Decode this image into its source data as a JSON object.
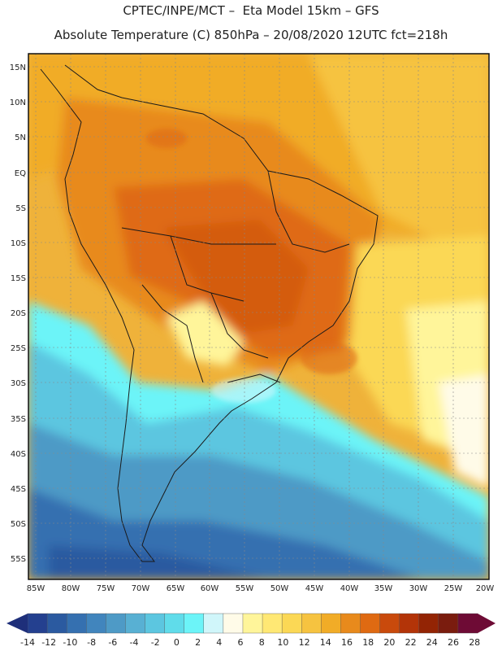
{
  "header": {
    "line1": "CPTEC/INPE/MCT –  Eta Model 15km – GFS",
    "line2": "Absolute Temperature (C) 850hPa – 20/08/2020 12UTC fct=218h"
  },
  "axes": {
    "lat_labels": [
      "15N",
      "10N",
      "5N",
      "EQ",
      "5S",
      "10S",
      "15S",
      "20S",
      "25S",
      "30S",
      "35S",
      "40S",
      "45S",
      "50S",
      "55S"
    ],
    "lon_labels": [
      "85W",
      "80W",
      "75W",
      "70W",
      "65W",
      "60W",
      "55W",
      "50W",
      "45W",
      "40W",
      "35W",
      "30W",
      "25W",
      "20W"
    ]
  },
  "colorbar": {
    "labels": [
      "-14",
      "-12",
      "-10",
      "-8",
      "-6",
      "-4",
      "-2",
      "0",
      "2",
      "4",
      "6",
      "8",
      "10",
      "12",
      "14",
      "16",
      "18",
      "20",
      "22",
      "24",
      "26",
      "28"
    ],
    "colors": [
      "#24408f",
      "#2b5aa0",
      "#3570b0",
      "#4185bd",
      "#4e9ac6",
      "#58b0d3",
      "#5cc6e0",
      "#60dcea",
      "#6cf4f8",
      "#d0f6fa",
      "#fffbe8",
      "#fff59a",
      "#ffe874",
      "#fbd855",
      "#f6c340",
      "#f1ac27",
      "#e88a1c",
      "#df6a12",
      "#c94a0c",
      "#b33408",
      "#932404",
      "#7a1c0e",
      "#6e0b35"
    ],
    "under_color": "#1e2f7a",
    "over_color": "#6e0b35"
  }
}
